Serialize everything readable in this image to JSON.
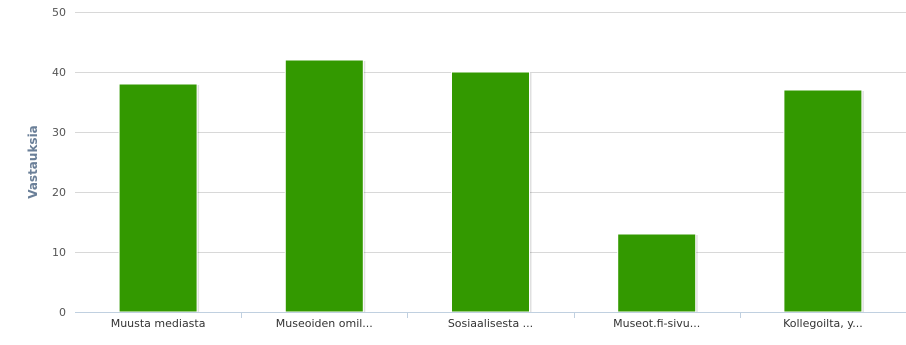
{
  "chart_data": {
    "type": "bar",
    "title": "",
    "xlabel": "",
    "ylabel": "Vastauksia",
    "ylim": [
      0,
      50
    ],
    "yticks": [
      0,
      10,
      20,
      30,
      40,
      50
    ],
    "grid": true,
    "legend": "none",
    "categories": [
      "Muusta mediasta",
      "Museoiden omil...",
      "Sosiaalisesta ...",
      "Museot.fi-sivu...",
      "Kollegoilta, y..."
    ],
    "values": [
      38,
      42,
      40,
      13,
      37
    ],
    "colors": {
      "bar": "#339900",
      "grid": "#d8d8d8",
      "axis": "#c0d0e0",
      "tick_text": "#555555",
      "ylabel_text": "#6a7f98"
    }
  }
}
